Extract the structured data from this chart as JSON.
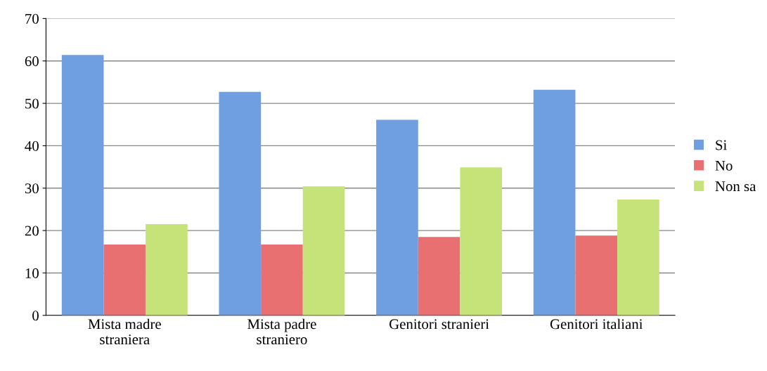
{
  "chart_data": {
    "type": "bar",
    "categories": [
      "Mista madre\nstraniera",
      "Mista padre\nstraniero",
      "Genitori stranieri",
      "Genitori italiani"
    ],
    "series": [
      {
        "name": "Si",
        "color": "#6f9fe0",
        "values": [
          61.4,
          52.7,
          46.1,
          53.2
        ]
      },
      {
        "name": "No",
        "color": "#e87070",
        "values": [
          16.7,
          16.7,
          18.5,
          18.8
        ]
      },
      {
        "name": "Non sa",
        "color": "#c6e37a",
        "values": [
          21.5,
          30.4,
          34.9,
          27.3
        ]
      }
    ],
    "ylim": [
      0,
      70
    ],
    "yticks": [
      0,
      10,
      20,
      30,
      40,
      50,
      60,
      70
    ],
    "grid": "y",
    "legend": "right"
  }
}
